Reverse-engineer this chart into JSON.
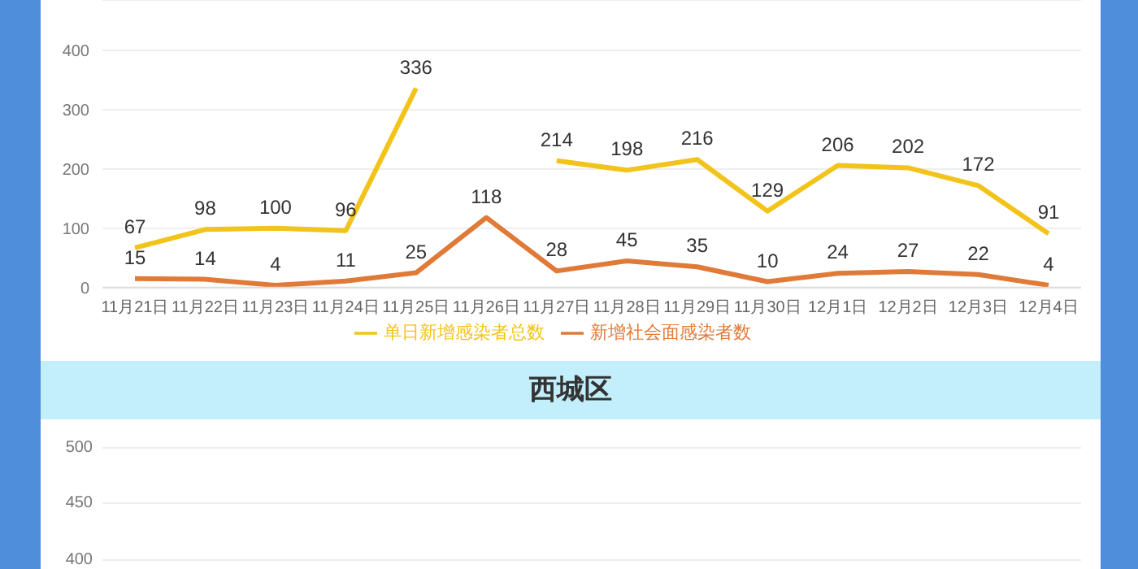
{
  "chart_data": [
    {
      "type": "line",
      "categories": [
        "11月21日",
        "11月22日",
        "11月23日",
        "11月24日",
        "11月25日",
        "11月26日",
        "11月27日",
        "11月28日",
        "11月29日",
        "11月30日",
        "12月1日",
        "12月2日",
        "12月3日",
        "12月4日"
      ],
      "series": [
        {
          "name": "单日新增感染者总数",
          "color": "#f2c31a",
          "values": [
            67,
            98,
            100,
            96,
            336,
            null,
            214,
            198,
            216,
            129,
            206,
            202,
            172,
            91
          ]
        },
        {
          "name": "新增社会面感染者数",
          "color": "#e07a38",
          "values": [
            15,
            14,
            4,
            11,
            25,
            118,
            28,
            45,
            35,
            10,
            24,
            27,
            22,
            4
          ]
        }
      ],
      "ylim": [
        0,
        485
      ],
      "yticks": [
        0,
        100,
        200,
        300,
        400
      ],
      "grid": "y",
      "legend": "bottom",
      "data_labels": true,
      "marker": "none",
      "line_style": "solid"
    },
    {
      "type": "other",
      "title": "西城区",
      "annotations": [
        "500",
        "450",
        "400"
      ]
    }
  ]
}
